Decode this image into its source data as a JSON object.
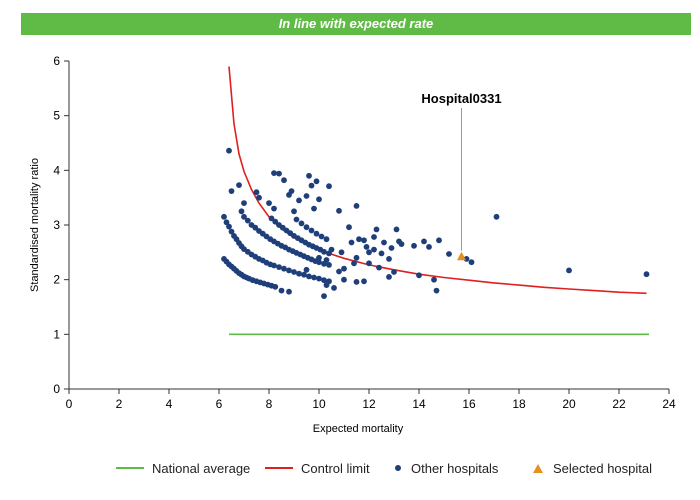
{
  "banner": {
    "text": "In line with expected rate",
    "color": "#5fbb46"
  },
  "chart_data": {
    "type": "scatter",
    "title": "",
    "xlabel": "Expected mortality",
    "ylabel": "Standardised mortality ratio",
    "xlim": [
      0,
      24
    ],
    "ylim": [
      0,
      6
    ],
    "xticks": [
      0,
      2,
      4,
      6,
      8,
      10,
      12,
      14,
      16,
      18,
      20,
      22,
      24
    ],
    "yticks": [
      0,
      1,
      2,
      3,
      4,
      5,
      6
    ],
    "grid": false,
    "legend_position": "bottom",
    "annotation": {
      "text": "Hospital0331",
      "x": 15.7,
      "y": 2.42
    },
    "national_average": {
      "name": "National average",
      "x_range": [
        6.4,
        23.2
      ],
      "y": 1,
      "color": "#5fbb46"
    },
    "control_limit": {
      "name": "Control limit",
      "color": "#e02020",
      "x": [
        6.4,
        6.6,
        6.8,
        7.0,
        7.3,
        7.6,
        8.0,
        8.5,
        9.0,
        9.5,
        10.0,
        11.0,
        12.0,
        13.0,
        14.0,
        15.0,
        16.0,
        17.0,
        18.0,
        19.0,
        20.0,
        21.0,
        22.0,
        23.1
      ],
      "y": [
        5.9,
        4.85,
        4.3,
        3.98,
        3.65,
        3.4,
        3.15,
        2.93,
        2.77,
        2.64,
        2.54,
        2.39,
        2.27,
        2.18,
        2.1,
        2.04,
        1.99,
        1.94,
        1.9,
        1.86,
        1.83,
        1.8,
        1.77,
        1.75
      ]
    },
    "series": [
      {
        "name": "Other hospitals",
        "color": "#1f3f7a",
        "points": [
          [
            6.2,
            2.38
          ],
          [
            6.3,
            2.33
          ],
          [
            6.4,
            2.28
          ],
          [
            6.5,
            2.24
          ],
          [
            6.6,
            2.2
          ],
          [
            6.7,
            2.16
          ],
          [
            6.8,
            2.12
          ],
          [
            6.9,
            2.09
          ],
          [
            7.0,
            2.06
          ],
          [
            7.1,
            2.04
          ],
          [
            7.2,
            2.02
          ],
          [
            7.35,
            1.99
          ],
          [
            7.5,
            1.97
          ],
          [
            7.65,
            1.95
          ],
          [
            7.8,
            1.93
          ],
          [
            7.95,
            1.91
          ],
          [
            8.1,
            1.89
          ],
          [
            8.25,
            1.87
          ],
          [
            8.5,
            1.8
          ],
          [
            8.8,
            1.78
          ],
          [
            6.2,
            3.15
          ],
          [
            6.3,
            3.05
          ],
          [
            6.4,
            2.97
          ],
          [
            6.5,
            2.88
          ],
          [
            6.6,
            2.8
          ],
          [
            6.7,
            2.74
          ],
          [
            6.8,
            2.67
          ],
          [
            6.9,
            2.61
          ],
          [
            7.0,
            2.56
          ],
          [
            7.15,
            2.51
          ],
          [
            7.3,
            2.46
          ],
          [
            7.45,
            2.42
          ],
          [
            7.6,
            2.38
          ],
          [
            7.75,
            2.35
          ],
          [
            7.9,
            2.31
          ],
          [
            8.05,
            2.28
          ],
          [
            8.2,
            2.26
          ],
          [
            8.4,
            2.23
          ],
          [
            8.6,
            2.2
          ],
          [
            8.8,
            2.17
          ],
          [
            9.0,
            2.14
          ],
          [
            9.2,
            2.11
          ],
          [
            9.4,
            2.09
          ],
          [
            9.6,
            2.06
          ],
          [
            9.8,
            2.04
          ],
          [
            10.0,
            2.02
          ],
          [
            10.2,
            1.99
          ],
          [
            10.4,
            1.97
          ],
          [
            7.0,
            3.15
          ],
          [
            7.15,
            3.08
          ],
          [
            7.3,
            3.0
          ],
          [
            7.45,
            2.95
          ],
          [
            7.6,
            2.89
          ],
          [
            7.75,
            2.84
          ],
          [
            7.9,
            2.79
          ],
          [
            8.05,
            2.74
          ],
          [
            8.2,
            2.7
          ],
          [
            8.35,
            2.66
          ],
          [
            8.5,
            2.62
          ],
          [
            8.65,
            2.59
          ],
          [
            8.8,
            2.55
          ],
          [
            8.95,
            2.52
          ],
          [
            9.1,
            2.49
          ],
          [
            9.25,
            2.46
          ],
          [
            9.4,
            2.43
          ],
          [
            9.55,
            2.4
          ],
          [
            9.7,
            2.37
          ],
          [
            9.85,
            2.34
          ],
          [
            10.0,
            2.32
          ],
          [
            10.2,
            2.29
          ],
          [
            10.4,
            2.27
          ],
          [
            8.1,
            3.12
          ],
          [
            8.25,
            3.06
          ],
          [
            8.4,
            3.0
          ],
          [
            8.55,
            2.95
          ],
          [
            8.7,
            2.9
          ],
          [
            8.85,
            2.85
          ],
          [
            9.0,
            2.8
          ],
          [
            9.15,
            2.76
          ],
          [
            9.3,
            2.72
          ],
          [
            9.45,
            2.68
          ],
          [
            9.6,
            2.64
          ],
          [
            9.75,
            2.61
          ],
          [
            9.9,
            2.58
          ],
          [
            10.05,
            2.55
          ],
          [
            10.2,
            2.51
          ],
          [
            10.4,
            2.48
          ],
          [
            9.1,
            3.1
          ],
          [
            9.3,
            3.03
          ],
          [
            9.5,
            2.96
          ],
          [
            9.7,
            2.9
          ],
          [
            9.9,
            2.84
          ],
          [
            10.1,
            2.79
          ],
          [
            10.3,
            2.74
          ],
          [
            6.4,
            4.36
          ],
          [
            6.5,
            3.62
          ],
          [
            6.8,
            3.73
          ],
          [
            7.0,
            3.4
          ],
          [
            6.9,
            3.25
          ],
          [
            7.5,
            3.6
          ],
          [
            7.6,
            3.5
          ],
          [
            8.0,
            3.4
          ],
          [
            8.2,
            3.3
          ],
          [
            8.4,
            3.94
          ],
          [
            8.6,
            3.82
          ],
          [
            8.8,
            3.55
          ],
          [
            8.9,
            3.62
          ],
          [
            9.0,
            3.25
          ],
          [
            9.2,
            3.45
          ],
          [
            9.5,
            3.53
          ],
          [
            9.6,
            3.9
          ],
          [
            9.7,
            3.72
          ],
          [
            9.8,
            3.3
          ],
          [
            9.9,
            3.8
          ],
          [
            10.0,
            3.47
          ],
          [
            10.4,
            3.71
          ],
          [
            10.5,
            2.55
          ],
          [
            10.6,
            1.85
          ],
          [
            10.8,
            3.26
          ],
          [
            10.9,
            2.5
          ],
          [
            11.0,
            2.2
          ],
          [
            11.0,
            2.0
          ],
          [
            11.2,
            2.96
          ],
          [
            11.3,
            2.68
          ],
          [
            11.4,
            2.3
          ],
          [
            11.5,
            3.35
          ],
          [
            11.6,
            2.74
          ],
          [
            11.8,
            2.72
          ],
          [
            11.9,
            2.6
          ],
          [
            12.0,
            2.5
          ],
          [
            12.2,
            2.55
          ],
          [
            12.0,
            2.3
          ],
          [
            12.2,
            2.78
          ],
          [
            12.3,
            2.92
          ],
          [
            12.4,
            2.22
          ],
          [
            12.6,
            2.68
          ],
          [
            12.8,
            2.38
          ],
          [
            12.8,
            2.05
          ],
          [
            12.9,
            2.58
          ],
          [
            13.0,
            2.14
          ],
          [
            13.1,
            2.92
          ],
          [
            13.2,
            2.7
          ],
          [
            13.3,
            2.65
          ],
          [
            13.8,
            2.62
          ],
          [
            14.0,
            2.08
          ],
          [
            14.2,
            2.7
          ],
          [
            14.4,
            2.6
          ],
          [
            14.6,
            2.0
          ],
          [
            14.7,
            1.8
          ],
          [
            14.8,
            2.72
          ],
          [
            15.2,
            2.47
          ],
          [
            16.1,
            2.32
          ],
          [
            17.1,
            3.15
          ],
          [
            20.0,
            2.17
          ],
          [
            23.1,
            2.1
          ],
          [
            10.3,
            1.9
          ],
          [
            10.2,
            1.7
          ],
          [
            11.8,
            1.97
          ],
          [
            11.5,
            1.96
          ],
          [
            8.2,
            3.95
          ],
          [
            10.0,
            2.4
          ],
          [
            10.3,
            2.36
          ],
          [
            12.5,
            2.48
          ],
          [
            15.9,
            2.38
          ],
          [
            9.5,
            2.18
          ],
          [
            10.8,
            2.15
          ],
          [
            11.5,
            2.4
          ]
        ]
      },
      {
        "name": "Selected hospital",
        "color": "#e8901e",
        "points": [
          [
            15.7,
            2.42
          ]
        ]
      }
    ]
  },
  "legend": [
    {
      "label": "National average",
      "color": "#5fbb46",
      "marker": "line"
    },
    {
      "label": "Control limit",
      "color": "#e02020",
      "marker": "line"
    },
    {
      "label": "Other hospitals",
      "color": "#1f3f7a",
      "marker": "dot"
    },
    {
      "label": "Selected hospital",
      "color": "#e8901e",
      "marker": "triangle"
    }
  ]
}
